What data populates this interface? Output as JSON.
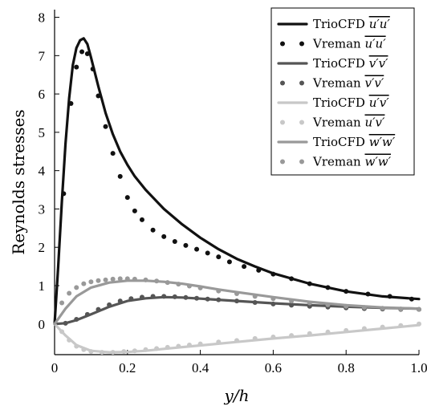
{
  "chart_data": {
    "type": "line",
    "xlabel": "y/h",
    "ylabel": "Reynolds stresses",
    "xlim": [
      0,
      1.0
    ],
    "ylim": [
      -0.8,
      8.2
    ],
    "xticks": [
      0,
      0.2,
      0.4,
      0.6,
      0.8,
      1.0
    ],
    "xtick_labels": [
      "0",
      "0.2",
      "0.4",
      "0.6",
      "0.8",
      "1.0"
    ],
    "yticks": [
      0,
      1,
      2,
      3,
      4,
      5,
      6,
      7,
      8
    ],
    "ytick_labels": [
      "0",
      "1",
      "2",
      "3",
      "4",
      "5",
      "6",
      "7",
      "8"
    ],
    "grid": false,
    "legend_position": "top-right",
    "series": [
      {
        "name": "TrioCFD u'u'",
        "style": "solid",
        "color": "#111111",
        "x": [
          0,
          0.01,
          0.02,
          0.03,
          0.04,
          0.05,
          0.06,
          0.07,
          0.08,
          0.09,
          0.1,
          0.12,
          0.14,
          0.16,
          0.18,
          0.2,
          0.22,
          0.25,
          0.3,
          0.35,
          0.4,
          0.45,
          0.5,
          0.55,
          0.6,
          0.7,
          0.8,
          0.9,
          1.0
        ],
        "y": [
          0,
          1.5,
          3.2,
          4.7,
          5.9,
          6.75,
          7.2,
          7.4,
          7.45,
          7.3,
          6.95,
          6.2,
          5.5,
          4.95,
          4.5,
          4.15,
          3.85,
          3.5,
          3.0,
          2.6,
          2.25,
          1.95,
          1.7,
          1.5,
          1.32,
          1.05,
          0.85,
          0.72,
          0.65
        ]
      },
      {
        "name": "Vreman u'u'",
        "style": "dots",
        "color": "#111111",
        "x": [
          0.025,
          0.045,
          0.06,
          0.075,
          0.09,
          0.105,
          0.12,
          0.14,
          0.16,
          0.18,
          0.2,
          0.22,
          0.24,
          0.27,
          0.3,
          0.33,
          0.36,
          0.39,
          0.42,
          0.45,
          0.48,
          0.52,
          0.56,
          0.6,
          0.65,
          0.7,
          0.75,
          0.8,
          0.86,
          0.92,
          0.98
        ],
        "y": [
          3.4,
          5.75,
          6.7,
          7.1,
          7.05,
          6.65,
          5.95,
          5.15,
          4.45,
          3.85,
          3.3,
          2.95,
          2.72,
          2.45,
          2.28,
          2.15,
          2.05,
          1.95,
          1.85,
          1.75,
          1.62,
          1.5,
          1.4,
          1.3,
          1.18,
          1.05,
          0.95,
          0.85,
          0.78,
          0.72,
          0.65
        ]
      },
      {
        "name": "TrioCFD v'v'",
        "style": "solid",
        "color": "#555555",
        "x": [
          0,
          0.03,
          0.06,
          0.1,
          0.15,
          0.2,
          0.25,
          0.3,
          0.35,
          0.4,
          0.5,
          0.6,
          0.7,
          0.8,
          0.9,
          1.0
        ],
        "y": [
          0,
          0.02,
          0.1,
          0.25,
          0.45,
          0.6,
          0.67,
          0.7,
          0.69,
          0.66,
          0.6,
          0.54,
          0.49,
          0.45,
          0.42,
          0.4
        ]
      },
      {
        "name": "Vreman v'v'",
        "style": "dots",
        "color": "#555555",
        "x": [
          0.03,
          0.06,
          0.09,
          0.12,
          0.15,
          0.18,
          0.21,
          0.24,
          0.27,
          0.3,
          0.33,
          0.36,
          0.39,
          0.42,
          0.45,
          0.5,
          0.55,
          0.6,
          0.65,
          0.7,
          0.75,
          0.8,
          0.85,
          0.9,
          0.95,
          1.0
        ],
        "y": [
          0.02,
          0.12,
          0.25,
          0.38,
          0.5,
          0.6,
          0.66,
          0.7,
          0.72,
          0.72,
          0.71,
          0.69,
          0.67,
          0.65,
          0.63,
          0.6,
          0.56,
          0.52,
          0.49,
          0.46,
          0.44,
          0.42,
          0.4,
          0.39,
          0.38,
          0.38
        ]
      },
      {
        "name": "TrioCFD u'v'",
        "style": "solid",
        "color": "#c8c8c8",
        "x": [
          0,
          0.03,
          0.06,
          0.1,
          0.15,
          0.2,
          0.25,
          0.3,
          0.4,
          0.5,
          0.6,
          0.7,
          0.8,
          0.9,
          1.0
        ],
        "y": [
          0,
          -0.3,
          -0.55,
          -0.7,
          -0.74,
          -0.73,
          -0.7,
          -0.65,
          -0.56,
          -0.47,
          -0.38,
          -0.3,
          -0.21,
          -0.12,
          -0.03
        ]
      },
      {
        "name": "Vreman u'v'",
        "style": "dots",
        "color": "#c8c8c8",
        "x": [
          0.02,
          0.04,
          0.06,
          0.08,
          0.1,
          0.13,
          0.16,
          0.19,
          0.22,
          0.25,
          0.28,
          0.31,
          0.34,
          0.37,
          0.4,
          0.45,
          0.5,
          0.55,
          0.6,
          0.65,
          0.7,
          0.75,
          0.8,
          0.85,
          0.9,
          0.95,
          1.0
        ],
        "y": [
          -0.2,
          -0.42,
          -0.58,
          -0.67,
          -0.72,
          -0.74,
          -0.74,
          -0.72,
          -0.7,
          -0.67,
          -0.64,
          -0.61,
          -0.58,
          -0.55,
          -0.52,
          -0.47,
          -0.43,
          -0.38,
          -0.34,
          -0.3,
          -0.25,
          -0.21,
          -0.17,
          -0.12,
          -0.08,
          -0.04,
          0
        ]
      },
      {
        "name": "TrioCFD w'w'",
        "style": "solid",
        "color": "#999999",
        "x": [
          0,
          0.03,
          0.06,
          0.1,
          0.15,
          0.2,
          0.25,
          0.3,
          0.35,
          0.4,
          0.45,
          0.5,
          0.6,
          0.7,
          0.8,
          0.9,
          1.0
        ],
        "y": [
          0,
          0.4,
          0.72,
          0.95,
          1.08,
          1.13,
          1.13,
          1.1,
          1.05,
          0.98,
          0.9,
          0.83,
          0.7,
          0.58,
          0.49,
          0.43,
          0.4
        ]
      },
      {
        "name": "Vreman w'w'",
        "style": "dots",
        "color": "#999999",
        "x": [
          0.02,
          0.04,
          0.06,
          0.08,
          0.1,
          0.12,
          0.14,
          0.16,
          0.18,
          0.2,
          0.22,
          0.25,
          0.28,
          0.31,
          0.34,
          0.37,
          0.4,
          0.45,
          0.5,
          0.55,
          0.6,
          0.65,
          0.7,
          0.75,
          0.8,
          0.85,
          0.9,
          0.95,
          1.0
        ],
        "y": [
          0.55,
          0.8,
          0.95,
          1.05,
          1.1,
          1.13,
          1.15,
          1.17,
          1.18,
          1.18,
          1.17,
          1.15,
          1.12,
          1.08,
          1.04,
          0.99,
          0.94,
          0.86,
          0.79,
          0.72,
          0.66,
          0.6,
          0.55,
          0.5,
          0.46,
          0.43,
          0.41,
          0.39,
          0.38
        ]
      }
    ],
    "legend": [
      {
        "label": "TrioCFD ",
        "overline": "u′u′",
        "style": "solid",
        "color": "#111111"
      },
      {
        "label": "Vreman ",
        "overline": "u′u′",
        "style": "dots",
        "color": "#111111"
      },
      {
        "label": "TrioCFD ",
        "overline": "v′v′",
        "style": "solid",
        "color": "#555555"
      },
      {
        "label": "Vreman ",
        "overline": "v′v′",
        "style": "dots",
        "color": "#555555"
      },
      {
        "label": "TrioCFD ",
        "overline": "u′v′",
        "style": "solid",
        "color": "#c8c8c8"
      },
      {
        "label": "Vreman ",
        "overline": "u′v′",
        "style": "dots",
        "color": "#c8c8c8"
      },
      {
        "label": "TrioCFD ",
        "overline": "w′w′",
        "style": "solid",
        "color": "#999999"
      },
      {
        "label": "Vreman ",
        "overline": "w′w′",
        "style": "dots",
        "color": "#999999"
      }
    ]
  }
}
